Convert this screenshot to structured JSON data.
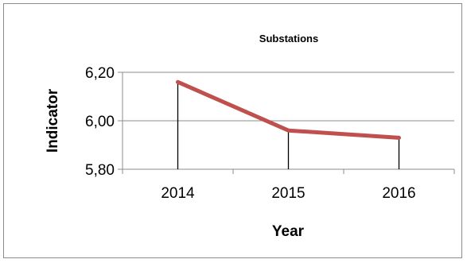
{
  "chart_data": {
    "type": "line",
    "title": "Substations",
    "xlabel": "Year",
    "ylabel": "Indicator",
    "categories": [
      "2014",
      "2015",
      "2016"
    ],
    "series": [
      {
        "values": [
          6.16,
          5.96,
          5.93
        ],
        "color": "#c0504d"
      }
    ],
    "ylim": [
      5.8,
      6.2
    ],
    "yticks": [
      5.8,
      6.0,
      6.2
    ],
    "ytick_labels": [
      "5,80",
      "6,00",
      "6,20"
    ],
    "drop_lines": true,
    "grid": "horizontal",
    "legend": "none"
  }
}
